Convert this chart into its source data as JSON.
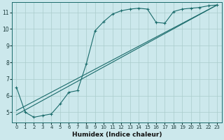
{
  "background_color": "#cce8ec",
  "grid_color": "#aacccc",
  "line_color": "#1a6b6b",
  "xlabel": "Humidex (Indice chaleur)",
  "xlim": [
    -0.5,
    23.5
  ],
  "ylim": [
    4.4,
    11.6
  ],
  "yticks": [
    5,
    6,
    7,
    8,
    9,
    10,
    11
  ],
  "xticks": [
    0,
    1,
    2,
    3,
    4,
    5,
    6,
    7,
    8,
    9,
    10,
    11,
    12,
    13,
    14,
    15,
    16,
    17,
    18,
    19,
    20,
    21,
    22,
    23
  ],
  "jagged_x": [
    0,
    1,
    2,
    3,
    4,
    5,
    6,
    7,
    8,
    9,
    10,
    11,
    12,
    13,
    14,
    15,
    16,
    17,
    18,
    19,
    20,
    21,
    22,
    23
  ],
  "jagged_y": [
    6.5,
    5.0,
    4.7,
    4.8,
    4.9,
    5.5,
    6.2,
    6.3,
    7.9,
    9.9,
    10.45,
    10.9,
    11.1,
    11.2,
    11.25,
    11.2,
    10.4,
    10.35,
    11.05,
    11.2,
    11.25,
    11.3,
    11.4,
    11.45
  ],
  "line1_x": [
    0,
    23
  ],
  "line1_y": [
    4.85,
    11.45
  ],
  "line2_x": [
    0,
    23
  ],
  "line2_y": [
    5.1,
    11.45
  ]
}
